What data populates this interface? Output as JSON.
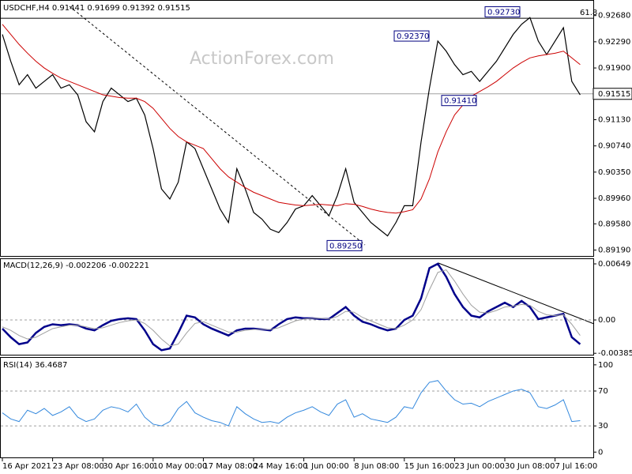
{
  "chart_data": {
    "type": "line",
    "title": "USDCHF,H4  0.91441 0.91699 0.91392 0.91515",
    "watermark": "ActionForex.com",
    "categories": [
      "16 Apr 2021",
      null,
      null,
      null,
      null,
      null,
      "23 Apr 08:00",
      null,
      null,
      null,
      null,
      null,
      "30 Apr 16:00",
      null,
      null,
      null,
      null,
      null,
      "10 May 00:00",
      null,
      null,
      null,
      null,
      null,
      "17 May 08:00",
      null,
      null,
      null,
      null,
      null,
      "24 May 16:00",
      null,
      null,
      null,
      null,
      null,
      "1 Jun 00:00",
      null,
      null,
      null,
      null,
      null,
      "8 Jun 08:00",
      null,
      null,
      null,
      null,
      null,
      "15 Jun 16:00",
      null,
      null,
      null,
      null,
      null,
      "23 Jun 00:00",
      null,
      null,
      null,
      null,
      null,
      "30 Jun 08:00",
      null,
      null,
      null,
      null,
      null,
      "7 Jul 16:00",
      null,
      null,
      null
    ],
    "series": [
      {
        "name": "USDCHF",
        "color": "#000000",
        "values": [
          0.924,
          0.92,
          0.9165,
          0.918,
          0.916,
          0.917,
          0.918,
          0.916,
          0.9165,
          0.915,
          0.911,
          0.9095,
          0.914,
          0.916,
          0.915,
          0.914,
          0.9145,
          0.912,
          0.907,
          0.901,
          0.8995,
          0.902,
          0.908,
          0.907,
          0.904,
          0.901,
          0.898,
          0.896,
          0.904,
          0.901,
          0.8975,
          0.8965,
          0.895,
          0.8945,
          0.896,
          0.898,
          0.8985,
          0.9,
          0.8985,
          0.897,
          0.9,
          0.904,
          0.899,
          0.8975,
          0.896,
          0.895,
          0.894,
          0.896,
          0.8985,
          0.8985,
          0.908,
          0.916,
          0.923,
          0.9215,
          0.9195,
          0.918,
          0.9185,
          0.917,
          0.9185,
          0.92,
          0.922,
          0.924,
          0.9255,
          0.9265,
          0.923,
          0.921,
          0.923,
          0.925,
          0.917,
          0.915
        ]
      },
      {
        "name": "MA",
        "color": "#cc0000",
        "values": [
          0.9255,
          0.924,
          0.9225,
          0.9212,
          0.92,
          0.919,
          0.9182,
          0.9175,
          0.917,
          0.9165,
          0.916,
          0.9155,
          0.915,
          0.9148,
          0.9146,
          0.9145,
          0.9145,
          0.914,
          0.913,
          0.9115,
          0.91,
          0.9088,
          0.908,
          0.9075,
          0.907,
          0.9055,
          0.904,
          0.9028,
          0.902,
          0.9012,
          0.9005,
          0.9,
          0.8995,
          0.899,
          0.8988,
          0.8986,
          0.8985,
          0.8986,
          0.8987,
          0.8986,
          0.8985,
          0.8988,
          0.8987,
          0.8984,
          0.898,
          0.8977,
          0.8975,
          0.8974,
          0.8976,
          0.8979,
          0.8995,
          0.9025,
          0.9065,
          0.9095,
          0.912,
          0.9135,
          0.9148,
          0.9155,
          0.9162,
          0.917,
          0.918,
          0.919,
          0.9198,
          0.9205,
          0.9208,
          0.921,
          0.9212,
          0.9215,
          0.9205,
          0.9195
        ]
      }
    ],
    "ylim": [
      0.8909,
      0.929
    ],
    "yticks": [
      {
        "value": 0.9268,
        "label": "0.92680"
      },
      {
        "value": 0.9229,
        "label": "0.92290"
      },
      {
        "value": 0.919,
        "label": "0.91900"
      },
      {
        "value": 0.9113,
        "label": "0.91130"
      },
      {
        "value": 0.9074,
        "label": "0.90740"
      },
      {
        "value": 0.9035,
        "label": "0.90350"
      },
      {
        "value": 0.8996,
        "label": "0.89960"
      },
      {
        "value": 0.8958,
        "label": "0.89580"
      },
      {
        "value": 0.8919,
        "label": "0.89190"
      }
    ],
    "current_price": {
      "value": 0.91515,
      "label": "0.91515"
    },
    "fib_line": {
      "value": 0.9264,
      "label": "61.8"
    },
    "annotations": [
      {
        "value": 0.9273,
        "label": "0.92730"
      },
      {
        "value": 0.9237,
        "label": "0.92370"
      },
      {
        "value": 0.9141,
        "label": "0.91410"
      },
      {
        "value": 0.8925,
        "label": "0.89250"
      }
    ],
    "macd": {
      "title": "MACD(12,26,9) -0.002206 -0.002221",
      "ylim": [
        -0.00402,
        0.00704
      ],
      "yticks": [
        0.00649,
        {
          "value": 0,
          "label": "0.00"
        },
        -0.003855
      ],
      "series": [
        {
          "name": "MACD",
          "color": "#00008b",
          "values": [
            -0.001,
            -0.002,
            -0.0028,
            -0.0026,
            -0.0015,
            -0.0008,
            -0.0005,
            -0.0006,
            -0.0005,
            -0.0006,
            -0.001,
            -0.0012,
            -0.0006,
            -0.0001,
            0.0001,
            0.0002,
            0.0001,
            -0.0012,
            -0.0028,
            -0.0035,
            -0.0033,
            -0.0015,
            0.0005,
            0.0003,
            -0.0005,
            -0.001,
            -0.0014,
            -0.0018,
            -0.0012,
            -0.001,
            -0.001,
            -0.0011,
            -0.0012,
            -0.0005,
            0.0001,
            0.0003,
            0.0002,
            0.0002,
            0.0001,
            0.0001,
            0.0008,
            0.0015,
            0.0005,
            -0.0002,
            -0.0005,
            -0.0009,
            -0.0012,
            -0.001,
            0.0,
            0.0005,
            0.0025,
            0.006,
            0.0065,
            0.005,
            0.003,
            0.0015,
            0.0005,
            0.0003,
            0.001,
            0.0015,
            0.002,
            0.0015,
            0.0022,
            0.0015,
            0.0001,
            0.0003,
            0.0005,
            0.0007,
            -0.002,
            -0.0028
          ]
        },
        {
          "name": "Signal",
          "color": "#a0a0a0",
          "values": [
            -0.0008,
            -0.0012,
            -0.0018,
            -0.0022,
            -0.002,
            -0.0015,
            -0.001,
            -0.0008,
            -0.0006,
            -0.0006,
            -0.0008,
            -0.001,
            -0.0009,
            -0.0006,
            -0.0003,
            -0.0001,
            0.0,
            -0.0004,
            -0.0012,
            -0.0022,
            -0.003,
            -0.0028,
            -0.0015,
            -0.0004,
            -0.0002,
            -0.0006,
            -0.001,
            -0.0014,
            -0.0014,
            -0.0012,
            -0.0011,
            -0.0011,
            -0.0011,
            -0.0009,
            -0.0005,
            -0.0001,
            0.0001,
            0.0002,
            0.0002,
            0.0001,
            0.0004,
            0.001,
            0.0009,
            0.0003,
            -0.0001,
            -0.0005,
            -0.0009,
            -0.001,
            -0.0006,
            0.0,
            0.0012,
            0.0035,
            0.0055,
            0.0058,
            0.0045,
            0.003,
            0.0017,
            0.0009,
            0.0008,
            0.0011,
            0.0015,
            0.0016,
            0.0018,
            0.0017,
            0.001,
            0.0006,
            0.0005,
            0.0006,
            -0.0005,
            -0.0018
          ]
        }
      ]
    },
    "rsi": {
      "title": "RSI(14) 36.4687",
      "color": "#3388dd",
      "ylim": [
        -7,
        108
      ],
      "yticks": [
        100,
        70,
        30,
        0
      ],
      "levels": [
        70,
        30
      ],
      "values": [
        45,
        38,
        35,
        48,
        44,
        50,
        42,
        46,
        52,
        40,
        35,
        38,
        48,
        52,
        50,
        46,
        55,
        40,
        32,
        30,
        35,
        50,
        58,
        45,
        40,
        36,
        34,
        30,
        52,
        44,
        38,
        34,
        35,
        33,
        40,
        45,
        48,
        52,
        46,
        42,
        55,
        60,
        40,
        44,
        38,
        36,
        34,
        40,
        52,
        50,
        68,
        80,
        82,
        70,
        60,
        55,
        56,
        52,
        58,
        62,
        66,
        70,
        72,
        68,
        52,
        50,
        54,
        60,
        35,
        36
      ]
    },
    "grid": false
  }
}
